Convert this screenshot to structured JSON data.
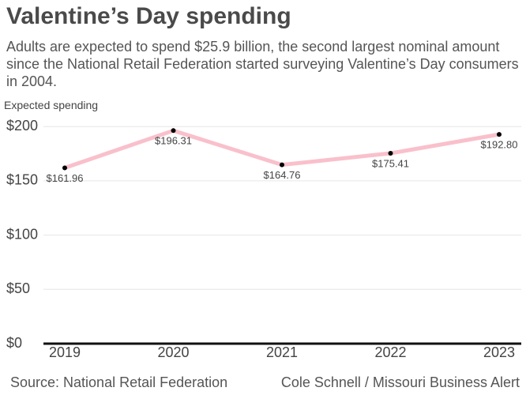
{
  "chart_data": {
    "type": "line",
    "title": "Valentine’s Day spending",
    "subtitle": "Adults are expected to spend $25.9 billion, the second largest nominal amount since the National Retail Federation started surveying Valentine’s Day consumers in 2004.",
    "y_label": "Expected spending",
    "source": "Source: National Retail Federation",
    "credit": "Cole Schnell / Missouri Business Alert",
    "categories": [
      "2019",
      "2020",
      "2021",
      "2022",
      "2023"
    ],
    "values": [
      161.96,
      196.31,
      164.76,
      175.41,
      192.8
    ],
    "value_labels": [
      "$161.96",
      "$196.31",
      "$164.76",
      "$175.41",
      "$192.80"
    ],
    "color": "#f9c0cb",
    "ylim": [
      0,
      206
    ],
    "yticks": [
      {
        "value": 0,
        "label": "$0"
      },
      {
        "value": 50,
        "label": "$50"
      },
      {
        "value": 100,
        "label": "$100"
      },
      {
        "value": 150,
        "label": "$150"
      },
      {
        "value": 200,
        "label": "$200"
      }
    ],
    "grid": true
  }
}
